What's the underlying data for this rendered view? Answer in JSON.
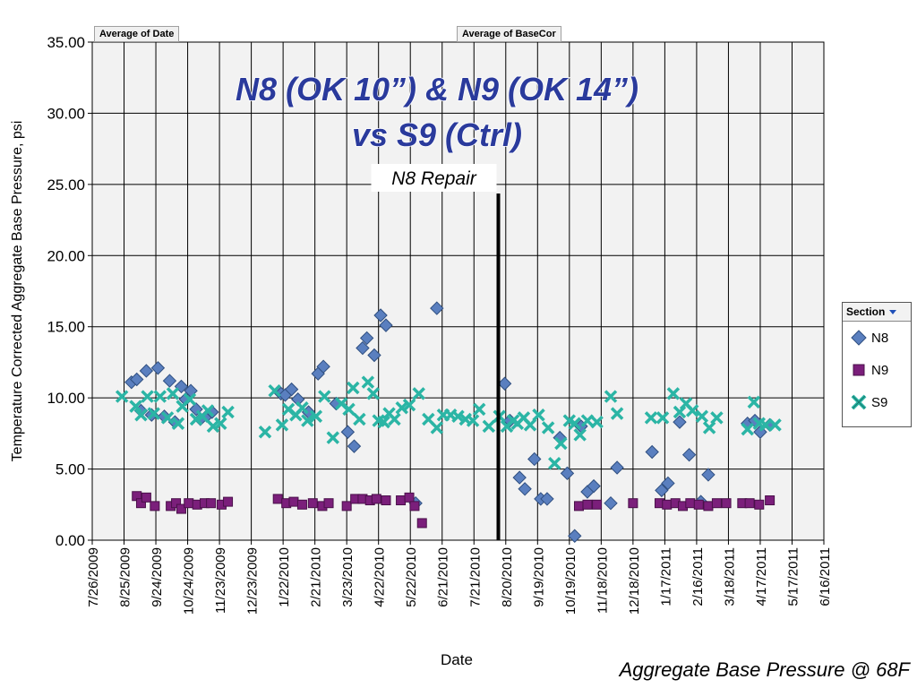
{
  "header": {
    "field_date": "Average of Date",
    "field_value": "Average of BaseCor"
  },
  "legend": {
    "title": "Section",
    "items": [
      {
        "label": "N8",
        "color": "#5a7fbf",
        "marker": "diamond"
      },
      {
        "label": "N9",
        "color": "#7b1f7b",
        "marker": "square"
      },
      {
        "label": "S9",
        "color": "#2bb5a5",
        "marker": "x"
      }
    ]
  },
  "footer": "Aggregate Base Pressure @ 68F",
  "chart_data": {
    "type": "scatter",
    "title": "N8 (OK 10”) & N9 (OK 14”) vs S9 (Ctrl)",
    "xlabel": "Date",
    "ylabel": "Temperature Corrected Aggregate Base Pressure, psi",
    "xlim": [
      "2009-07-26",
      "2011-06-16"
    ],
    "ylim": [
      0,
      35
    ],
    "x_ticks": [
      "7/26/2009",
      "8/25/2009",
      "9/24/2009",
      "10/24/2009",
      "11/23/2009",
      "12/23/2009",
      "1/22/2010",
      "2/21/2010",
      "3/23/2010",
      "4/22/2010",
      "5/22/2010",
      "6/21/2010",
      "7/21/2010",
      "8/20/2010",
      "9/19/2010",
      "10/19/2010",
      "11/18/2010",
      "12/18/2010",
      "1/17/2011",
      "2/16/2011",
      "3/18/2011",
      "4/17/2011",
      "5/17/2011",
      "6/16/2011"
    ],
    "y_ticks": [
      "0.00",
      "5.00",
      "10.00",
      "15.00",
      "20.00",
      "25.00",
      "30.00",
      "35.00"
    ],
    "grid": true,
    "legend_position": "right",
    "annotation": {
      "label": "N8 Repair",
      "x": "2010-08-13"
    },
    "series": [
      {
        "name": "N8",
        "color": "#5a7fbf",
        "marker": "diamond",
        "points": [
          [
            "2009-09-01",
            11.1
          ],
          [
            "2009-09-06",
            11.3
          ],
          [
            "2009-09-10",
            9.1
          ],
          [
            "2009-09-15",
            11.9
          ],
          [
            "2009-09-20",
            8.8
          ],
          [
            "2009-09-26",
            12.1
          ],
          [
            "2009-10-02",
            8.7
          ],
          [
            "2009-10-07",
            11.2
          ],
          [
            "2009-10-12",
            8.3
          ],
          [
            "2009-10-18",
            10.8
          ],
          [
            "2009-10-22",
            9.9
          ],
          [
            "2009-10-27",
            10.5
          ],
          [
            "2009-11-01",
            9.2
          ],
          [
            "2009-11-05",
            8.5
          ],
          [
            "2009-11-12",
            8.8
          ],
          [
            "2009-11-16",
            9.0
          ],
          [
            "2010-01-20",
            10.3
          ],
          [
            "2010-01-24",
            10.2
          ],
          [
            "2010-01-30",
            10.6
          ],
          [
            "2010-02-05",
            9.9
          ],
          [
            "2010-02-15",
            9.0
          ],
          [
            "2010-02-24",
            11.7
          ],
          [
            "2010-03-01",
            12.2
          ],
          [
            "2010-03-13",
            9.6
          ],
          [
            "2010-03-24",
            7.6
          ],
          [
            "2010-03-30",
            6.6
          ],
          [
            "2010-04-07",
            13.5
          ],
          [
            "2010-04-11",
            14.2
          ],
          [
            "2010-04-18",
            13.0
          ],
          [
            "2010-04-24",
            15.8
          ],
          [
            "2010-04-29",
            15.1
          ],
          [
            "2010-05-27",
            2.6
          ],
          [
            "2010-06-16",
            16.3
          ],
          [
            "2010-08-19",
            11.0
          ],
          [
            "2010-08-24",
            8.4
          ],
          [
            "2010-09-02",
            4.4
          ],
          [
            "2010-09-07",
            3.6
          ],
          [
            "2010-09-16",
            5.7
          ],
          [
            "2010-09-22",
            2.9
          ],
          [
            "2010-09-28",
            2.9
          ],
          [
            "2010-10-10",
            7.2
          ],
          [
            "2010-10-17",
            4.7
          ],
          [
            "2010-10-24",
            0.3
          ],
          [
            "2010-10-30",
            8.0
          ],
          [
            "2010-11-05",
            3.4
          ],
          [
            "2010-11-11",
            3.8
          ],
          [
            "2010-11-27",
            2.6
          ],
          [
            "2010-12-03",
            5.1
          ],
          [
            "2011-01-05",
            6.2
          ],
          [
            "2011-01-14",
            3.5
          ],
          [
            "2011-01-20",
            4.0
          ],
          [
            "2011-01-31",
            8.3
          ],
          [
            "2011-02-09",
            6.0
          ],
          [
            "2011-02-20",
            2.7
          ],
          [
            "2011-02-27",
            4.6
          ],
          [
            "2011-04-05",
            8.2
          ],
          [
            "2011-04-12",
            8.4
          ],
          [
            "2011-04-17",
            7.6
          ],
          [
            "2011-04-26",
            8.1
          ]
        ]
      },
      {
        "name": "N9",
        "color": "#7b1f7b",
        "marker": "square",
        "points": [
          [
            "2009-09-06",
            3.1
          ],
          [
            "2009-09-10",
            2.6
          ],
          [
            "2009-09-15",
            3.0
          ],
          [
            "2009-09-23",
            2.4
          ],
          [
            "2009-10-08",
            2.4
          ],
          [
            "2009-10-13",
            2.6
          ],
          [
            "2009-10-18",
            2.2
          ],
          [
            "2009-10-25",
            2.6
          ],
          [
            "2009-11-02",
            2.5
          ],
          [
            "2009-11-09",
            2.6
          ],
          [
            "2009-11-15",
            2.6
          ],
          [
            "2009-11-25",
            2.5
          ],
          [
            "2009-12-01",
            2.7
          ],
          [
            "2010-01-17",
            2.9
          ],
          [
            "2010-01-25",
            2.6
          ],
          [
            "2010-02-01",
            2.7
          ],
          [
            "2010-02-09",
            2.5
          ],
          [
            "2010-02-19",
            2.6
          ],
          [
            "2010-02-28",
            2.4
          ],
          [
            "2010-03-06",
            2.6
          ],
          [
            "2010-03-23",
            2.4
          ],
          [
            "2010-03-31",
            2.9
          ],
          [
            "2010-04-07",
            2.9
          ],
          [
            "2010-04-14",
            2.8
          ],
          [
            "2010-04-20",
            2.9
          ],
          [
            "2010-04-29",
            2.8
          ],
          [
            "2010-05-13",
            2.8
          ],
          [
            "2010-05-21",
            3.0
          ],
          [
            "2010-05-26",
            2.4
          ],
          [
            "2010-06-02",
            1.2
          ],
          [
            "2010-10-28",
            2.4
          ],
          [
            "2010-11-05",
            2.5
          ],
          [
            "2010-11-14",
            2.5
          ],
          [
            "2010-12-18",
            2.6
          ],
          [
            "2011-01-12",
            2.6
          ],
          [
            "2011-01-19",
            2.5
          ],
          [
            "2011-01-27",
            2.6
          ],
          [
            "2011-02-03",
            2.4
          ],
          [
            "2011-02-10",
            2.6
          ],
          [
            "2011-02-18",
            2.5
          ],
          [
            "2011-02-27",
            2.4
          ],
          [
            "2011-03-07",
            2.6
          ],
          [
            "2011-03-16",
            2.6
          ],
          [
            "2011-03-31",
            2.6
          ],
          [
            "2011-04-07",
            2.6
          ],
          [
            "2011-04-16",
            2.5
          ],
          [
            "2011-04-26",
            2.8
          ]
        ]
      },
      {
        "name": "S9",
        "color": "#2bb5a5",
        "marker": "x",
        "points": [
          [
            "2009-08-23",
            10.1
          ],
          [
            "2009-09-05",
            9.4
          ],
          [
            "2009-09-10",
            8.8
          ],
          [
            "2009-09-16",
            10.1
          ],
          [
            "2009-09-22",
            8.9
          ],
          [
            "2009-09-28",
            10.1
          ],
          [
            "2009-10-05",
            8.6
          ],
          [
            "2009-10-10",
            10.3
          ],
          [
            "2009-10-15",
            8.2
          ],
          [
            "2009-10-19",
            9.4
          ],
          [
            "2009-10-26",
            9.9
          ],
          [
            "2009-11-01",
            8.5
          ],
          [
            "2009-11-07",
            8.7
          ],
          [
            "2009-11-12",
            9.1
          ],
          [
            "2009-11-17",
            8.0
          ],
          [
            "2009-11-24",
            8.2
          ],
          [
            "2009-12-01",
            9.0
          ],
          [
            "2010-01-05",
            7.6
          ],
          [
            "2010-01-14",
            10.5
          ],
          [
            "2010-01-21",
            8.1
          ],
          [
            "2010-01-27",
            9.2
          ],
          [
            "2010-02-03",
            8.8
          ],
          [
            "2010-02-09",
            9.3
          ],
          [
            "2010-02-14",
            8.4
          ],
          [
            "2010-02-22",
            8.7
          ],
          [
            "2010-03-02",
            10.1
          ],
          [
            "2010-03-10",
            7.2
          ],
          [
            "2010-03-18",
            9.6
          ],
          [
            "2010-03-25",
            9.2
          ],
          [
            "2010-03-29",
            10.7
          ],
          [
            "2010-04-04",
            8.5
          ],
          [
            "2010-04-12",
            11.1
          ],
          [
            "2010-04-17",
            10.3
          ],
          [
            "2010-04-22",
            8.4
          ],
          [
            "2010-04-27",
            8.3
          ],
          [
            "2010-05-02",
            8.9
          ],
          [
            "2010-05-07",
            8.5
          ],
          [
            "2010-05-14",
            9.3
          ],
          [
            "2010-05-21",
            9.5
          ],
          [
            "2010-05-30",
            10.3
          ],
          [
            "2010-06-08",
            8.5
          ],
          [
            "2010-06-16",
            7.9
          ],
          [
            "2010-06-22",
            8.8
          ],
          [
            "2010-06-29",
            8.8
          ],
          [
            "2010-07-06",
            8.7
          ],
          [
            "2010-07-13",
            8.5
          ],
          [
            "2010-07-20",
            8.4
          ],
          [
            "2010-07-26",
            9.2
          ],
          [
            "2010-08-04",
            8.0
          ],
          [
            "2010-08-14",
            8.7
          ],
          [
            "2010-08-21",
            8.0
          ],
          [
            "2010-08-27",
            8.4
          ],
          [
            "2010-08-31",
            8.2
          ],
          [
            "2010-09-06",
            8.6
          ],
          [
            "2010-09-12",
            8.1
          ],
          [
            "2010-09-20",
            8.8
          ],
          [
            "2010-09-29",
            7.9
          ],
          [
            "2010-10-05",
            5.4
          ],
          [
            "2010-10-11",
            6.8
          ],
          [
            "2010-10-19",
            8.4
          ],
          [
            "2010-10-24",
            8.2
          ],
          [
            "2010-10-29",
            7.4
          ],
          [
            "2010-11-05",
            8.4
          ],
          [
            "2010-11-14",
            8.3
          ],
          [
            "2010-11-27",
            10.1
          ],
          [
            "2010-12-03",
            8.9
          ],
          [
            "2011-01-04",
            8.6
          ],
          [
            "2011-01-15",
            8.6
          ],
          [
            "2011-01-25",
            10.3
          ],
          [
            "2011-01-31",
            9.0
          ],
          [
            "2011-02-06",
            9.6
          ],
          [
            "2011-02-12",
            9.1
          ],
          [
            "2011-02-21",
            8.7
          ],
          [
            "2011-02-28",
            7.9
          ],
          [
            "2011-03-07",
            8.6
          ],
          [
            "2011-04-05",
            7.8
          ],
          [
            "2011-04-11",
            9.7
          ],
          [
            "2011-04-16",
            8.2
          ],
          [
            "2011-04-22",
            8.1
          ],
          [
            "2011-05-01",
            8.1
          ]
        ]
      }
    ]
  }
}
